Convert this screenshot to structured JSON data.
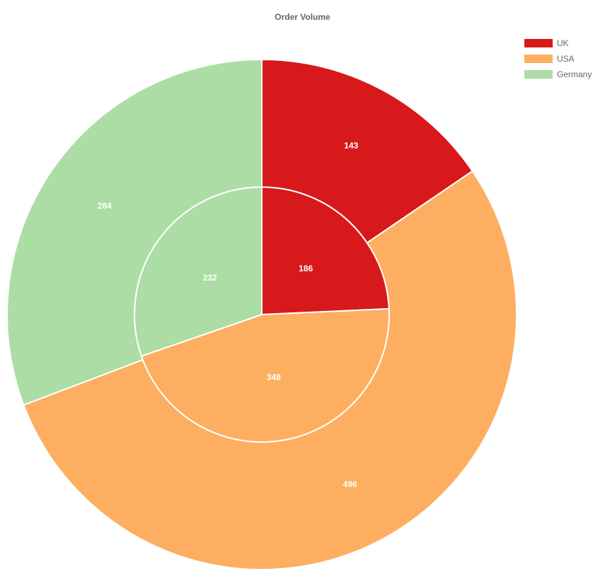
{
  "chart_data": {
    "type": "pie",
    "title": "Order Volume",
    "categories": [
      "UK",
      "USA",
      "Germany"
    ],
    "colors": [
      "#d7191c",
      "#fdae61",
      "#abdda4"
    ],
    "series": [
      {
        "values": [
          186,
          348,
          232
        ]
      },
      {
        "values": [
          143,
          496,
          284
        ]
      }
    ],
    "legend_position": "top-right"
  }
}
